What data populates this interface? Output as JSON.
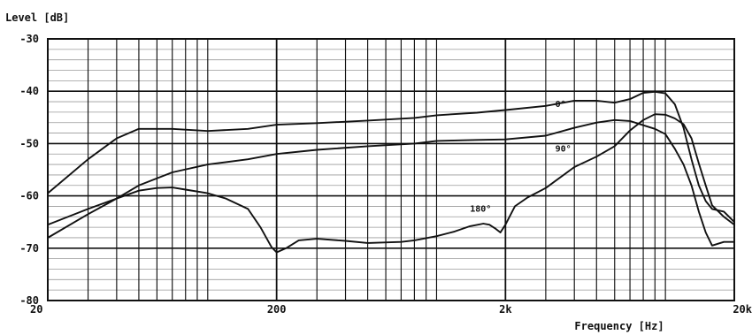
{
  "chart_data": {
    "type": "line",
    "title": "",
    "xlabel": "Frequency [Hz]",
    "ylabel": "Level [dB]",
    "xscale": "log",
    "xlim": [
      20,
      20000
    ],
    "ylim": [
      -80,
      -30
    ],
    "grid": true,
    "x_ticks": [
      {
        "value": 20,
        "label": "20"
      },
      {
        "value": 200,
        "label": "200"
      },
      {
        "value": 2000,
        "label": "2k"
      },
      {
        "value": 20000,
        "label": "20k"
      }
    ],
    "y_ticks": [
      {
        "value": -30,
        "label": "-30"
      },
      {
        "value": -40,
        "label": "-40"
      },
      {
        "value": -50,
        "label": "-50"
      },
      {
        "value": -60,
        "label": "-60"
      },
      {
        "value": -70,
        "label": "-70"
      },
      {
        "value": -80,
        "label": "-80"
      }
    ],
    "series": [
      {
        "name": "0°",
        "values": [
          [
            20,
            -59.5
          ],
          [
            30,
            -53
          ],
          [
            40,
            -49
          ],
          [
            50,
            -47.2
          ],
          [
            70,
            -47.2
          ],
          [
            100,
            -47.6
          ],
          [
            150,
            -47.2
          ],
          [
            200,
            -46.4
          ],
          [
            300,
            -46.1
          ],
          [
            500,
            -45.6
          ],
          [
            800,
            -45.1
          ],
          [
            1000,
            -44.6
          ],
          [
            1500,
            -44.1
          ],
          [
            2000,
            -43.6
          ],
          [
            3000,
            -42.8
          ],
          [
            4000,
            -41.8
          ],
          [
            5000,
            -41.8
          ],
          [
            6000,
            -42.2
          ],
          [
            7000,
            -41.5
          ],
          [
            8000,
            -40.3
          ],
          [
            9000,
            -40.1
          ],
          [
            10000,
            -40.4
          ],
          [
            11000,
            -42.5
          ],
          [
            12000,
            -47
          ],
          [
            13000,
            -53
          ],
          [
            14000,
            -58
          ],
          [
            15000,
            -61
          ],
          [
            16000,
            -62.5
          ],
          [
            18000,
            -63
          ],
          [
            20000,
            -65
          ]
        ]
      },
      {
        "name": "90°",
        "values": [
          [
            20,
            -68
          ],
          [
            30,
            -63.5
          ],
          [
            40,
            -60.5
          ],
          [
            50,
            -58
          ],
          [
            70,
            -55.5
          ],
          [
            100,
            -54
          ],
          [
            150,
            -53
          ],
          [
            200,
            -52
          ],
          [
            300,
            -51.2
          ],
          [
            500,
            -50.5
          ],
          [
            800,
            -50
          ],
          [
            1000,
            -49.5
          ],
          [
            1500,
            -49.3
          ],
          [
            2000,
            -49.2
          ],
          [
            3000,
            -48.5
          ],
          [
            4000,
            -47
          ],
          [
            5000,
            -46
          ],
          [
            6000,
            -45.5
          ],
          [
            7000,
            -45.7
          ],
          [
            8000,
            -46.5
          ],
          [
            9000,
            -47.2
          ],
          [
            10000,
            -48.2
          ],
          [
            11000,
            -51
          ],
          [
            12000,
            -54
          ],
          [
            13000,
            -58
          ],
          [
            14000,
            -63
          ],
          [
            15000,
            -67
          ],
          [
            16000,
            -69.5
          ],
          [
            18000,
            -68.8
          ],
          [
            20000,
            -68.8
          ]
        ]
      },
      {
        "name": "180°",
        "values": [
          [
            20,
            -65.5
          ],
          [
            30,
            -62.5
          ],
          [
            40,
            -60.5
          ],
          [
            50,
            -59
          ],
          [
            60,
            -58.5
          ],
          [
            70,
            -58.4
          ],
          [
            80,
            -58.8
          ],
          [
            100,
            -59.5
          ],
          [
            120,
            -60.5
          ],
          [
            150,
            -62.5
          ],
          [
            170,
            -66
          ],
          [
            190,
            -69.8
          ],
          [
            200,
            -70.8
          ],
          [
            220,
            -70
          ],
          [
            250,
            -68.5
          ],
          [
            300,
            -68.2
          ],
          [
            400,
            -68.6
          ],
          [
            500,
            -69
          ],
          [
            700,
            -68.8
          ],
          [
            800,
            -68.5
          ],
          [
            1000,
            -67.7
          ],
          [
            1200,
            -66.8
          ],
          [
            1400,
            -65.8
          ],
          [
            1600,
            -65.3
          ],
          [
            1700,
            -65.5
          ],
          [
            1800,
            -66.2
          ],
          [
            1900,
            -67
          ],
          [
            2000,
            -65.5
          ],
          [
            2200,
            -62
          ],
          [
            2500,
            -60.3
          ],
          [
            3000,
            -58.5
          ],
          [
            4000,
            -54.5
          ],
          [
            5000,
            -52.5
          ],
          [
            6000,
            -50.5
          ],
          [
            7000,
            -47.5
          ],
          [
            8000,
            -45.5
          ],
          [
            9000,
            -44.4
          ],
          [
            10000,
            -44.5
          ],
          [
            11000,
            -45.2
          ],
          [
            12000,
            -46.3
          ],
          [
            13000,
            -49
          ],
          [
            14000,
            -53.8
          ],
          [
            15000,
            -58
          ],
          [
            16000,
            -61.8
          ],
          [
            18000,
            -64
          ],
          [
            20000,
            -65.5
          ]
        ]
      }
    ],
    "annotations": [
      {
        "text": "0°",
        "x": 3300,
        "y": -43
      },
      {
        "text": "90°",
        "x": 3300,
        "y": -51.5
      },
      {
        "text": "180°",
        "x": 1400,
        "y": -63
      }
    ]
  }
}
